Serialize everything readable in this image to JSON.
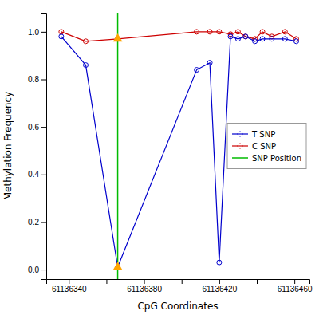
{
  "chart_data": {
    "type": "line",
    "xlabel": "CpG Coordinates",
    "ylabel": "Methylation Frequency",
    "xlim": [
      61136328,
      61136468
    ],
    "ylim": [
      -0.04,
      1.08
    ],
    "xticks": [
      61136340,
      {
        "value": 61136360,
        "label": null
      },
      61136380,
      {
        "value": 61136400,
        "label": null
      },
      61136420,
      {
        "value": 61136440,
        "label": null
      },
      61136460
    ],
    "yticks": [
      {
        "value": 0.0,
        "label": "0.0"
      },
      0.2,
      0.4,
      0.6,
      0.8,
      {
        "value": 1.0,
        "label": "1.0"
      }
    ],
    "grid": false,
    "legend": "center right",
    "series": [
      {
        "name": "T SNP",
        "type": "line",
        "color": "#0000CD",
        "marker": "circle",
        "x": [
          61136336,
          61136349,
          61136366,
          61136408,
          61136415,
          61136420,
          61136426,
          61136430,
          61136434,
          61136439,
          61136443,
          61136448,
          61136455,
          61136461
        ],
        "values": [
          0.98,
          0.86,
          0.01,
          0.84,
          0.87,
          0.03,
          0.98,
          0.97,
          0.98,
          0.96,
          0.97,
          0.97,
          0.97,
          0.96
        ]
      },
      {
        "name": "C SNP",
        "type": "line",
        "color": "#CD0000",
        "marker": "circle",
        "x": [
          61136336,
          61136349,
          61136366,
          61136408,
          61136415,
          61136420,
          61136426,
          61136430,
          61136434,
          61136439,
          61136443,
          61136448,
          61136455,
          61136461
        ],
        "values": [
          1.0,
          0.96,
          0.97,
          1.0,
          1.0,
          1.0,
          0.99,
          1.0,
          0.98,
          0.97,
          1.0,
          0.98,
          1.0,
          0.97
        ]
      },
      {
        "name": "SNP Position",
        "type": "vline",
        "color": "#00BB00",
        "x": [
          61136366
        ]
      },
      {
        "type": "scatter",
        "marker": "triangle",
        "color": "#FFA500",
        "x": [
          61136366,
          61136366
        ],
        "values": [
          0.97,
          0.01
        ]
      }
    ]
  }
}
